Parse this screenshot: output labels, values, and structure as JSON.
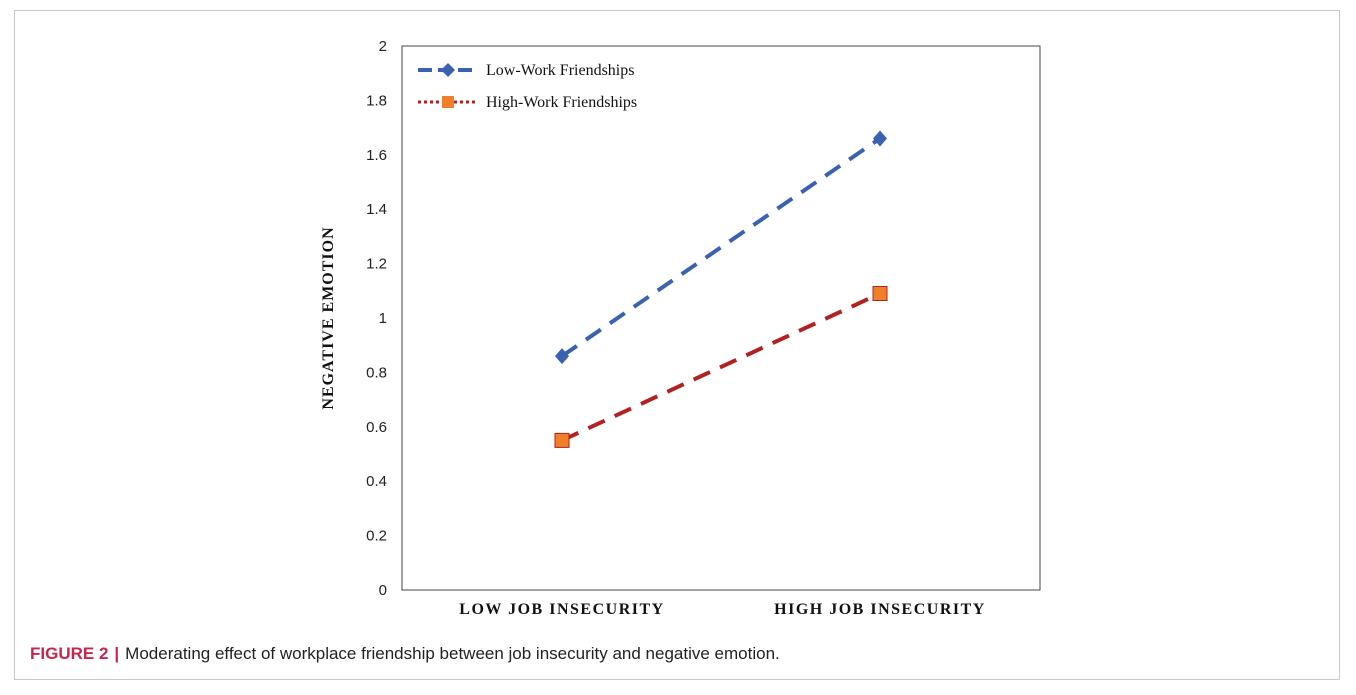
{
  "caption": {
    "label": "FIGURE 2",
    "separator": "|",
    "text": "Moderating effect of workplace friendship between job insecurity and negative emotion."
  },
  "chart_data": {
    "type": "line",
    "title": "",
    "xlabel": "",
    "ylabel": "NEGATIVE EMOTION",
    "categories": [
      "LOW JOB INSECURITY",
      "HIGH JOB INSECURITY"
    ],
    "ylim": [
      0,
      2
    ],
    "yticks": [
      0,
      0.2,
      0.4,
      0.6,
      0.8,
      1,
      1.2,
      1.4,
      1.6,
      1.8,
      2
    ],
    "ytick_labels": [
      "0",
      "0.2",
      "0.4",
      "0.6",
      "0.8",
      "1",
      "1.2",
      "1.4",
      "1.6",
      "1.8",
      "2"
    ],
    "grid": false,
    "legend_position": "top-left",
    "series": [
      {
        "name": "Low-Work Friendships",
        "values": [
          0.86,
          1.66
        ],
        "color": "#3a62b0",
        "marker": "diamond",
        "dash": "dashed"
      },
      {
        "name": "High-Work Friendships",
        "values": [
          0.55,
          1.09
        ],
        "color": "#b22222",
        "marker_color": "#f07f2a",
        "marker": "square",
        "dash": "dashed"
      }
    ]
  }
}
